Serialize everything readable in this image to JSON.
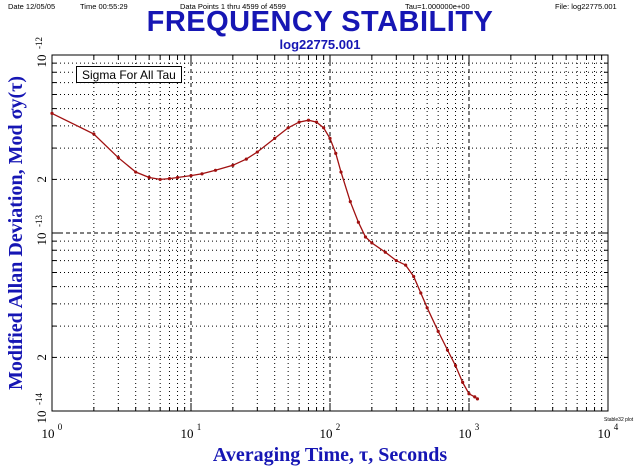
{
  "header": {
    "date": "Date 12/05/05",
    "time": "Time 00:55:29",
    "points": "Data Points 1 thru 4599 of 4599",
    "tau": "Tau=1.000000e+00",
    "file": "File: log22775.001"
  },
  "credit": "Stable32 plot",
  "chart_data": {
    "type": "line",
    "title": "FREQUENCY STABILITY",
    "subtitle": "log22775.001",
    "legend": "Sigma For All Tau",
    "legend_placement": "top-left",
    "xlabel": "Averaging Time, τ, Seconds",
    "ylabel": "Modified Allan Deviation, Mod σy(τ)",
    "x_scale": "log",
    "y_scale": "log",
    "xlim": [
      1,
      10000
    ],
    "ylim": [
      1e-14,
      1e-12
    ],
    "grid": true,
    "line_color": "#a01010",
    "x_ticks": [
      {
        "base": "10",
        "exp": "0"
      },
      {
        "base": "10",
        "exp": "1"
      },
      {
        "base": "10",
        "exp": "2"
      },
      {
        "base": "10",
        "exp": "3"
      },
      {
        "base": "10",
        "exp": "4"
      }
    ],
    "y_ticks": [
      {
        "base": "10",
        "exp": "-12"
      },
      {
        "base": "10",
        "exp": "-13"
      },
      {
        "base": "10",
        "exp": "-14"
      }
    ],
    "y_minor_labels": [
      "2",
      "2"
    ],
    "series": [
      {
        "x": [
          1,
          2,
          3,
          4,
          5,
          6,
          7,
          8,
          10,
          12,
          15,
          20,
          25,
          30,
          40,
          50,
          60,
          70,
          80,
          90,
          100,
          110,
          120,
          140,
          160,
          180,
          200,
          250,
          300,
          350,
          400,
          450,
          500,
          600,
          700,
          800,
          900,
          1000,
          1100,
          1150
        ],
        "y": [
          4.7e-13,
          3.6e-13,
          2.65e-13,
          2.2e-13,
          2.05e-13,
          2e-13,
          2.02e-13,
          2.05e-13,
          2.1e-13,
          2.15e-13,
          2.25e-13,
          2.4e-13,
          2.6e-13,
          2.85e-13,
          3.4e-13,
          3.9e-13,
          4.2e-13,
          4.3e-13,
          4.2e-13,
          3.9e-13,
          3.4e-13,
          2.8e-13,
          2.2e-13,
          1.5e-13,
          1.15e-13,
          9.5e-14,
          8.8e-14,
          7.8e-14,
          7e-14,
          6.6e-14,
          5.7e-14,
          4.6e-14,
          3.8e-14,
          2.8e-14,
          2.2e-14,
          1.8e-14,
          1.45e-14,
          1.25e-14,
          1.2e-14,
          1.17e-14
        ]
      }
    ]
  }
}
